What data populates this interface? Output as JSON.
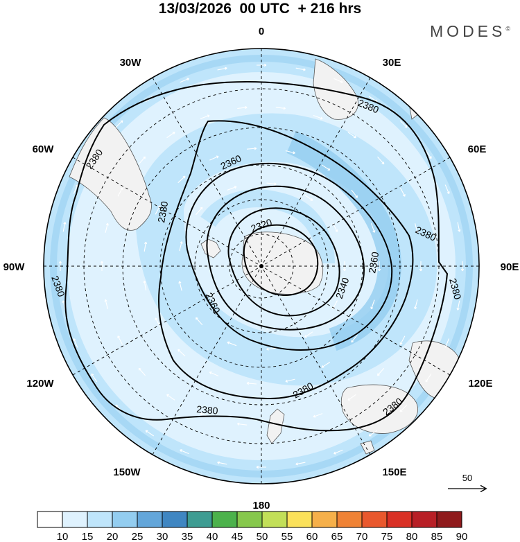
{
  "title": "13/03/2026  00 UTC  + 216 hrs",
  "brand": {
    "name": "MODES",
    "mark": "©"
  },
  "map": {
    "projection": "south-polar-stereographic",
    "longitude_labels": [
      {
        "name": "lon-label-0",
        "text": "0"
      },
      {
        "name": "lon-label-30e",
        "text": "30E"
      },
      {
        "name": "lon-label-60e",
        "text": "60E"
      },
      {
        "name": "lon-label-90e",
        "text": "90E"
      },
      {
        "name": "lon-label-120e",
        "text": "120E"
      },
      {
        "name": "lon-label-150e",
        "text": "150E"
      },
      {
        "name": "lon-label-180",
        "text": "180"
      },
      {
        "name": "lon-label-150w",
        "text": "150W"
      },
      {
        "name": "lon-label-120w",
        "text": "120W"
      },
      {
        "name": "lon-label-90w",
        "text": "90W"
      },
      {
        "name": "lon-label-60w",
        "text": "60W"
      },
      {
        "name": "lon-label-30w",
        "text": "30W"
      }
    ],
    "contour_labels": [
      "2380",
      "2380",
      "2380",
      "2380",
      "2380",
      "2380",
      "2380",
      "2380",
      "2360",
      "2360",
      "2360",
      "2340",
      "2320"
    ],
    "vector_reference": "50"
  },
  "colorbar": {
    "ticks": [
      "10",
      "15",
      "20",
      "25",
      "30",
      "35",
      "40",
      "45",
      "50",
      "55",
      "60",
      "65",
      "70",
      "75",
      "80",
      "85",
      "90"
    ],
    "colors": [
      "#ffffff",
      "#dff2fe",
      "#bfe5fb",
      "#93cdf0",
      "#63a6da",
      "#3f86c2",
      "#3e9c92",
      "#4cb24b",
      "#86c84c",
      "#c2df58",
      "#fbe15a",
      "#f6b04a",
      "#ef8235",
      "#e9582d",
      "#d93025",
      "#b81f26",
      "#8f1a1c"
    ]
  }
}
